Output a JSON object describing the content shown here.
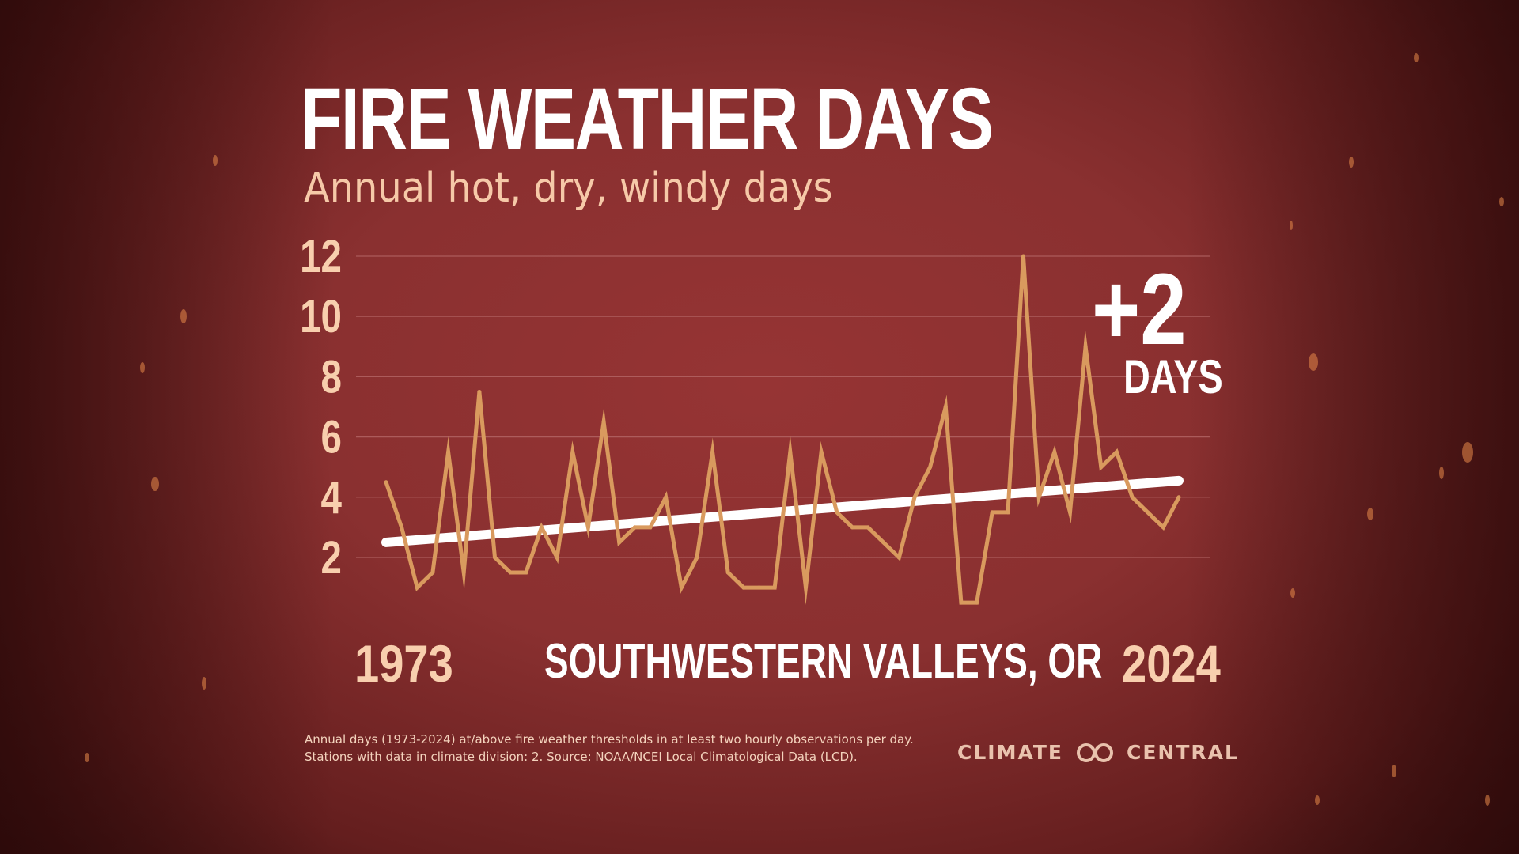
{
  "header": {
    "title": "FIRE WEATHER DAYS",
    "subtitle": "Annual hot, dry, windy days"
  },
  "callout": {
    "delta": "+2",
    "unit": "DAYS"
  },
  "labels": {
    "year_start": "1973",
    "year_end": "2024",
    "region": "SOUTHWESTERN VALLEYS, OR"
  },
  "footnote": {
    "line1": "Annual days (1973-2024) at/above fire weather thresholds in at least two hourly observations per day.",
    "line2": "Stations with data in climate division: 2. Source: NOAA/NCEI Local Climatological Data (LCD)."
  },
  "logo": {
    "left_text": "CLIMATE",
    "right_text": "CENTRAL",
    "icon": "climate-central-logo-icon"
  },
  "colors": {
    "background": "#8a3030",
    "series_line": "#d99a5e",
    "trend_line": "#ffffff",
    "gridline": "#b76a6a",
    "tick_label": "#f8cfae"
  },
  "chart_data": {
    "type": "line",
    "title": "FIRE WEATHER DAYS",
    "subtitle": "Annual hot, dry, windy days",
    "xlabel": "",
    "ylabel": "",
    "x": [
      1973,
      1974,
      1975,
      1976,
      1977,
      1978,
      1979,
      1980,
      1981,
      1982,
      1983,
      1984,
      1985,
      1986,
      1987,
      1988,
      1989,
      1990,
      1991,
      1992,
      1993,
      1994,
      1995,
      1996,
      1997,
      1998,
      1999,
      2000,
      2001,
      2002,
      2003,
      2004,
      2005,
      2006,
      2007,
      2008,
      2009,
      2010,
      2011,
      2012,
      2013,
      2014,
      2015,
      2016,
      2017,
      2018,
      2019,
      2020,
      2021,
      2022,
      2023,
      2024
    ],
    "values": [
      4.5,
      3,
      1,
      1.5,
      5.5,
      1.5,
      7.5,
      2,
      1.5,
      1.5,
      3,
      2,
      5.5,
      3,
      6.5,
      2.5,
      3,
      3,
      4,
      1,
      2,
      5.5,
      1.5,
      1,
      1,
      1,
      5.5,
      1,
      5.5,
      3.5,
      3,
      3,
      2.5,
      2,
      4,
      5,
      7,
      0.5,
      0.5,
      3.5,
      3.5,
      12,
      4,
      5.5,
      3.5,
      9,
      5,
      5.5,
      4,
      3.5,
      3,
      4
    ],
    "trend": {
      "x": [
        1973,
        2024
      ],
      "values": [
        2.5,
        4.55
      ]
    },
    "yticks": [
      2,
      4,
      6,
      8,
      10,
      12
    ],
    "ylim": [
      0.5,
      12
    ],
    "xlim": [
      1973,
      2024
    ],
    "grid": true,
    "legend": "none"
  }
}
